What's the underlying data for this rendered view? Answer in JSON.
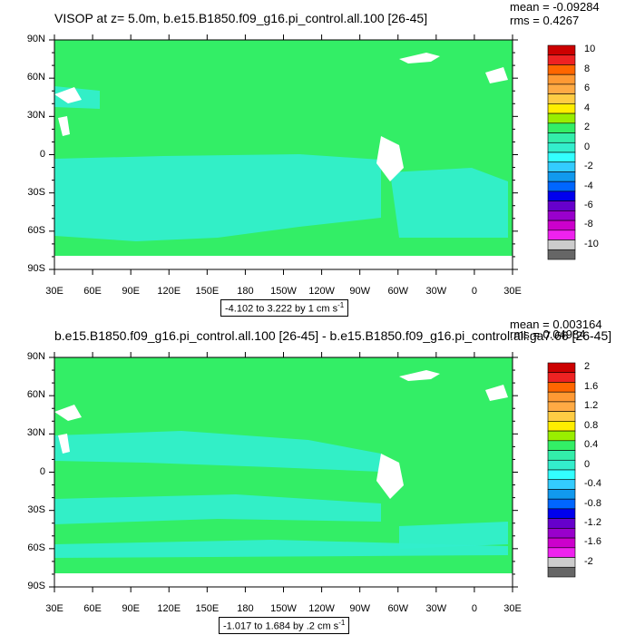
{
  "panels": [
    {
      "title": "VISOP at z=   5.0m, b.e15.B1850.f09_g16.pi_control.all.100 [26-45]",
      "mean": "mean = -0.09284",
      "rms": "rms = 0.4267",
      "range_text": "-4.102 to 3.222 by 1 cm s",
      "range_unit_exp": "-1",
      "colorbar_labels": [
        "10",
        "8",
        "6",
        "4",
        "2",
        "0",
        "-2",
        "-4",
        "-6",
        "-8",
        "-10"
      ],
      "dominant_color": "#33ee66",
      "secondary_color": "#33eecc"
    },
    {
      "title": "b.e15.B1850.f09_g16.pi_control.all.100 [26-45] - b.e15.B1850.f09_g16.pi_control.all.ga7.66 [26-45]",
      "mean": "mean = 0.003164",
      "rms": "rms = 0.04984",
      "range_text": "-1.017 to 1.684 by .2 cm s",
      "range_unit_exp": "-1",
      "colorbar_labels": [
        "2",
        "1.6",
        "1.2",
        "0.8",
        "0.4",
        "0",
        "-0.4",
        "-0.8",
        "-1.2",
        "-1.6",
        "-2"
      ],
      "dominant_color": "#33ee66",
      "secondary_color": "#33eecc"
    }
  ],
  "chart_data": {
    "type": "heatmap",
    "y_tick_labels": [
      "90N",
      "60N",
      "30N",
      "0",
      "30S",
      "60S",
      "90S"
    ],
    "x_tick_labels": [
      "30E",
      "60E",
      "90E",
      "120E",
      "150E",
      "180",
      "150W",
      "120W",
      "90W",
      "60W",
      "30W",
      "0",
      "30E"
    ],
    "colorbar_colors": [
      "#cc0000",
      "#ee2222",
      "#ff6600",
      "#ff9933",
      "#ffaa44",
      "#ffcc44",
      "#ffee00",
      "#99ee00",
      "#33ee66",
      "#33eeaa",
      "#33eecc",
      "#33ffff",
      "#33ccff",
      "#1199ee",
      "#0066ff",
      "#0000ee",
      "#6600cc",
      "#9900cc",
      "#cc00cc",
      "#ee22ee",
      "#cccccc",
      "#666666"
    ]
  }
}
